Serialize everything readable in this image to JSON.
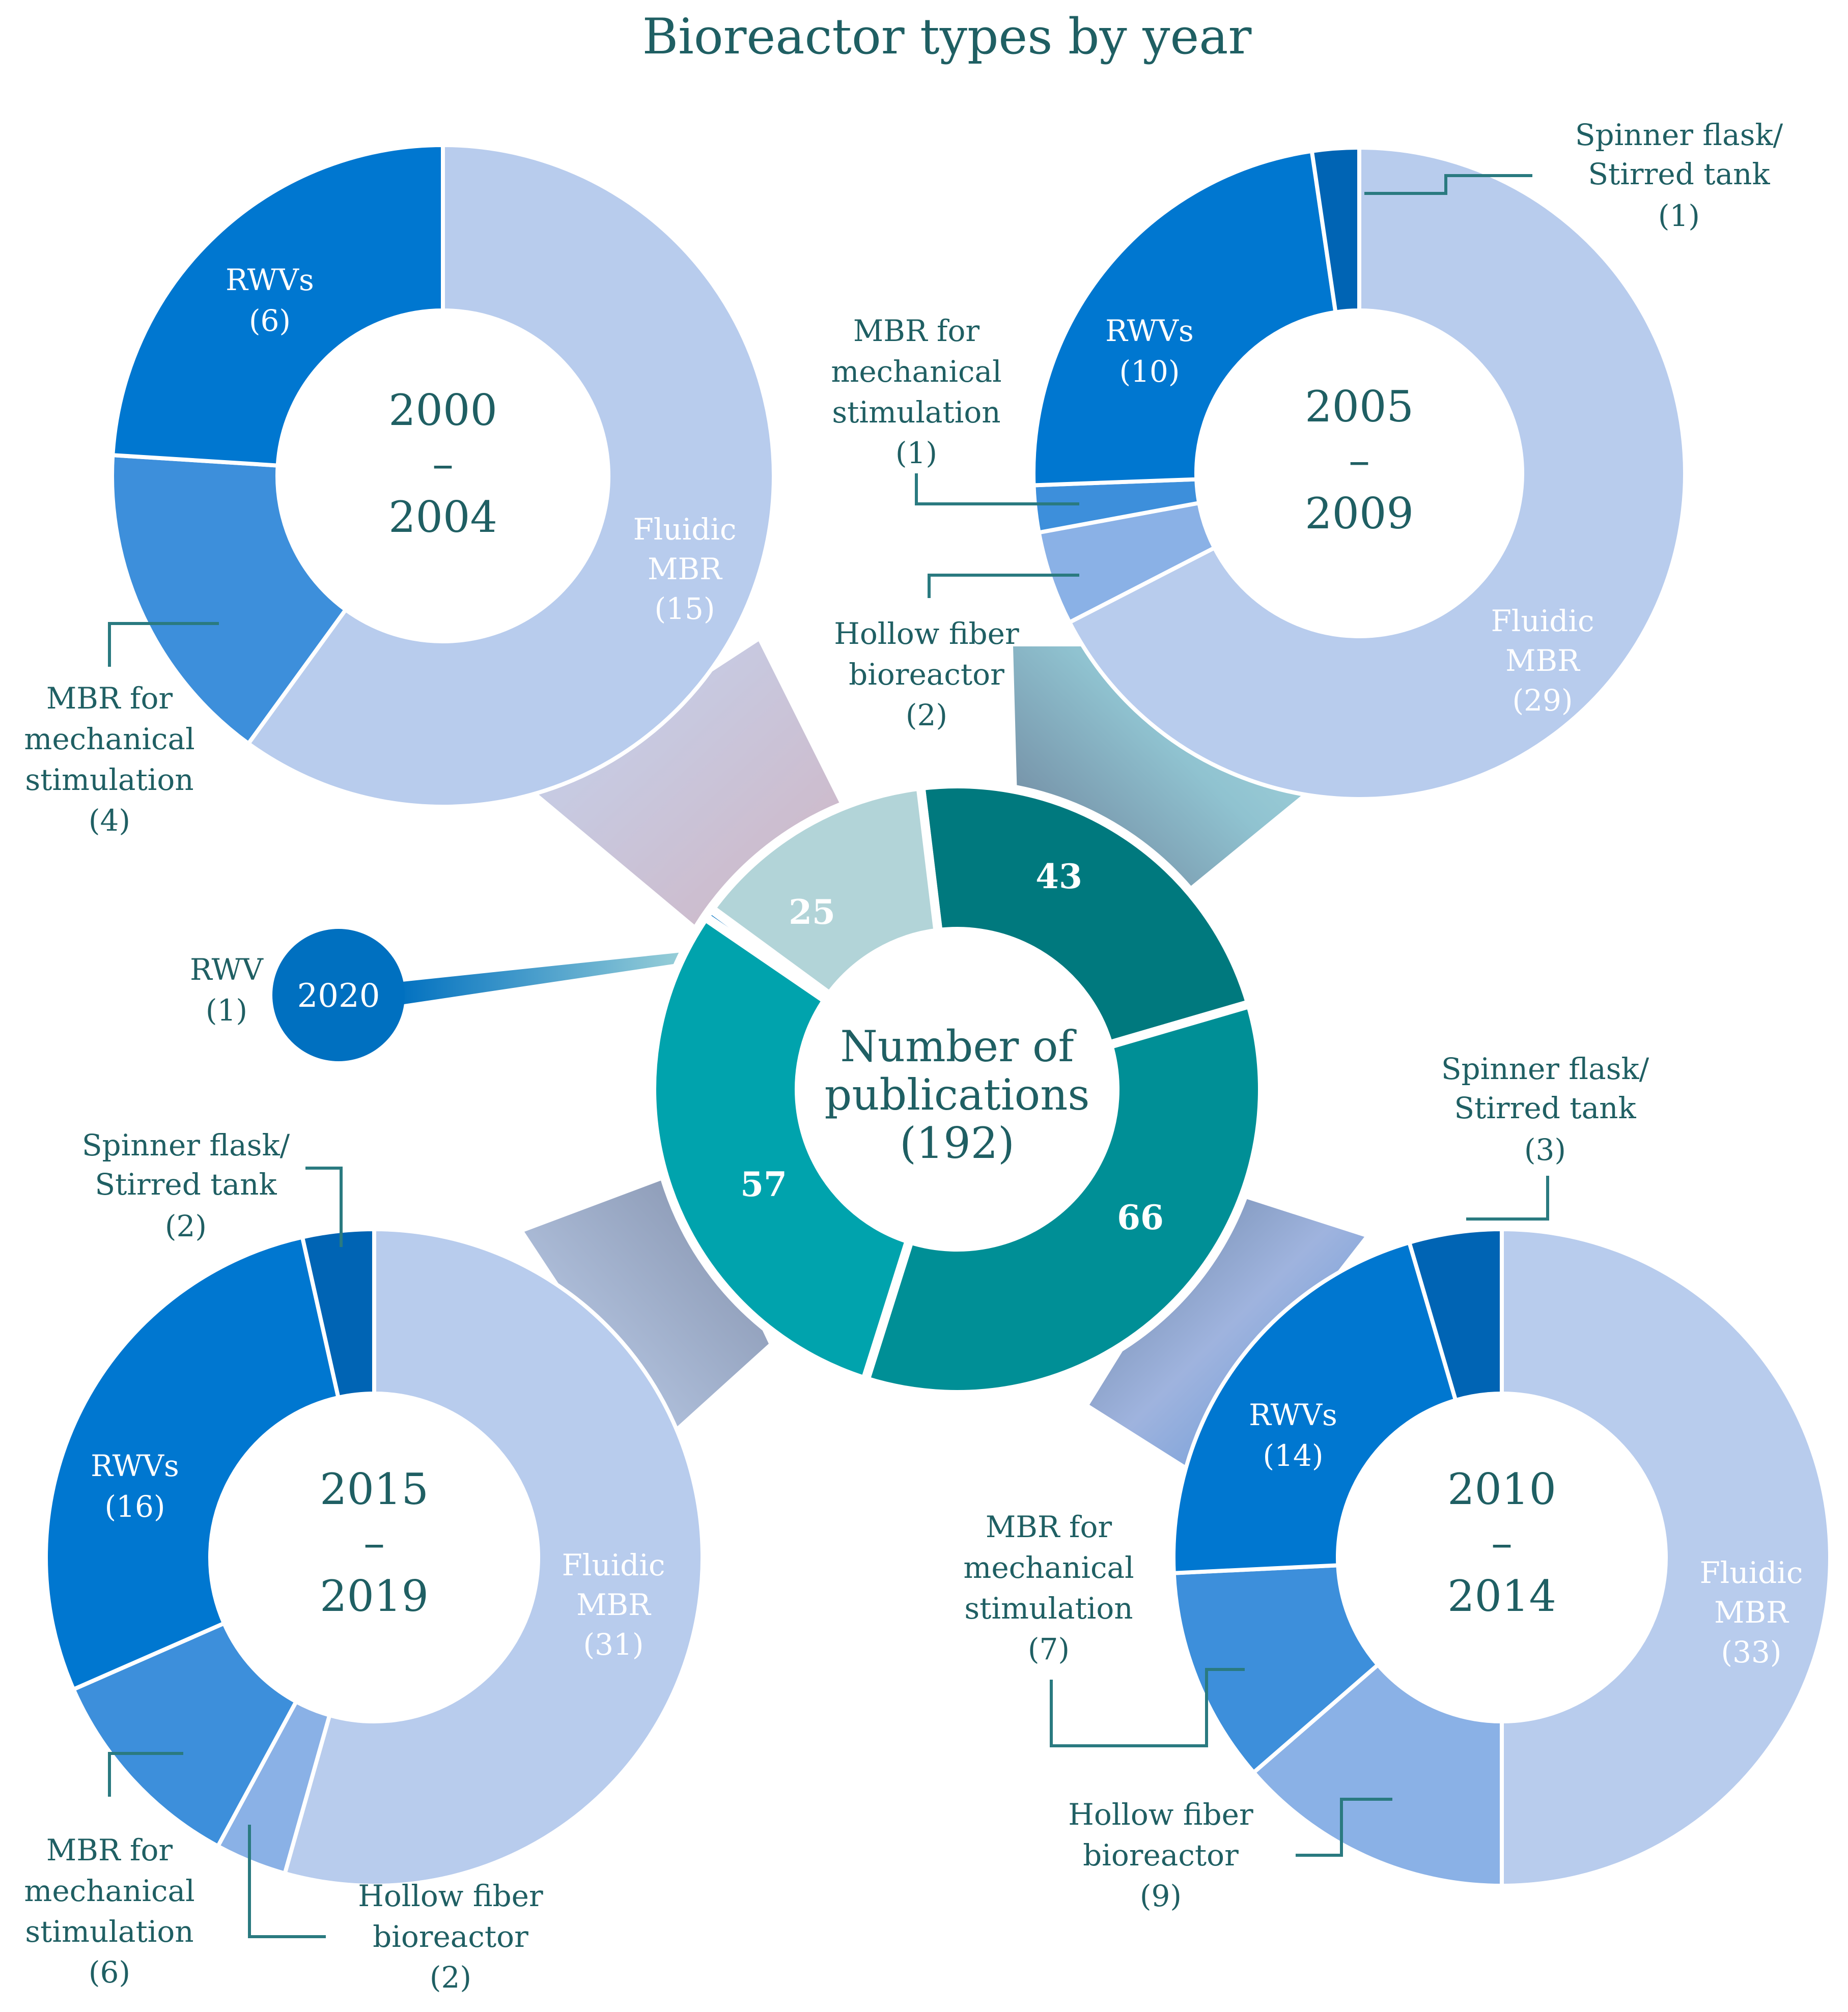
{
  "chart_data": {
    "type": "pie",
    "title": "Bioreactor types by year",
    "center": {
      "lines": [
        "Number of",
        "publications",
        "(192)"
      ],
      "values": [
        {
          "label": "43",
          "value": 43
        },
        {
          "label": "66",
          "value": 66
        },
        {
          "label": "57",
          "value": 57
        },
        {
          "label": "2020",
          "value": 1
        },
        {
          "label": "25",
          "value": 25
        }
      ],
      "colors": [
        "#00797e",
        "#008f96",
        "#00a3ad",
        "#0070c0",
        "#b2d4d8"
      ]
    },
    "donuts": [
      {
        "id": "d2000",
        "period": [
          "2000",
          "–",
          "2004"
        ],
        "segments": [
          {
            "name": "Fluidic MBR",
            "value": 15,
            "color": "#b8cced",
            "label_lines": [
              "Fluidic",
              "MBR",
              "(15)"
            ]
          },
          {
            "name": "MBR for mechanical stimulation",
            "value": 4,
            "color": "#3d8fdb",
            "label_lines": [
              "MBR for",
              "mechanical",
              "stimulation",
              "(4)"
            ]
          },
          {
            "name": "RWVs",
            "value": 6,
            "color": "#0077d0",
            "label_lines": [
              "RWVs",
              "(6)"
            ]
          }
        ]
      },
      {
        "id": "d2005",
        "period": [
          "2005",
          "–",
          "2009"
        ],
        "segments": [
          {
            "name": "Fluidic MBR",
            "value": 29,
            "color": "#b8cced",
            "label_lines": [
              "Fluidic",
              "MBR",
              "(29)"
            ]
          },
          {
            "name": "Hollow fiber bioreactor",
            "value": 2,
            "color": "#8ab1e6",
            "label_lines": [
              "Hollow fiber",
              "bioreactor",
              "(2)"
            ]
          },
          {
            "name": "MBR for mechanical stimulation",
            "value": 1,
            "color": "#3d8fdb",
            "label_lines": [
              "MBR for",
              "mechanical",
              "stimulation",
              "(1)"
            ]
          },
          {
            "name": "RWVs",
            "value": 10,
            "color": "#0077d0",
            "label_lines": [
              "RWVs",
              "(10)"
            ]
          },
          {
            "name": "Spinner flask/Stirred tank",
            "value": 1,
            "color": "#0064b4",
            "label_lines": [
              "Spinner flask/",
              "Stirred tank",
              "(1)"
            ]
          }
        ]
      },
      {
        "id": "d2010",
        "period": [
          "2010",
          "–",
          "2014"
        ],
        "segments": [
          {
            "name": "Fluidic MBR",
            "value": 33,
            "color": "#b8cced",
            "label_lines": [
              "Fluidic",
              "MBR",
              "(33)"
            ]
          },
          {
            "name": "Hollow fiber bioreactor",
            "value": 9,
            "color": "#8ab1e6",
            "label_lines": [
              "Hollow fiber",
              "bioreactor",
              "(9)"
            ]
          },
          {
            "name": "MBR for mechanical stimulation",
            "value": 7,
            "color": "#3d8fdb",
            "label_lines": [
              "MBR for",
              "mechanical",
              "stimulation",
              "(7)"
            ]
          },
          {
            "name": "RWVs",
            "value": 14,
            "color": "#0077d0",
            "label_lines": [
              "RWVs",
              "(14)"
            ]
          },
          {
            "name": "Spinner flask/Stirred tank",
            "value": 3,
            "color": "#0064b4",
            "label_lines": [
              "Spinner flask/",
              "Stirred tank",
              "(3)"
            ]
          }
        ]
      },
      {
        "id": "d2015",
        "period": [
          "2015",
          "–",
          "2019"
        ],
        "segments": [
          {
            "name": "Fluidic MBR",
            "value": 31,
            "color": "#b8cced",
            "label_lines": [
              "Fluidic",
              "MBR",
              "(31)"
            ]
          },
          {
            "name": "Hollow fiber bioreactor",
            "value": 2,
            "color": "#8ab1e6",
            "label_lines": [
              "Hollow fiber",
              "bioreactor",
              "(2)"
            ]
          },
          {
            "name": "MBR for mechanical stimulation",
            "value": 6,
            "color": "#3d8fdb",
            "label_lines": [
              "MBR for",
              "mechanical",
              "stimulation",
              "(6)"
            ]
          },
          {
            "name": "RWVs",
            "value": 16,
            "color": "#0077d0",
            "label_lines": [
              "RWVs",
              "(16)"
            ]
          },
          {
            "name": "Spinner flask/Stirred tank",
            "value": 2,
            "color": "#0064b4",
            "label_lines": [
              "Spinner flask/",
              "Stirred tank",
              "(2)"
            ]
          }
        ]
      }
    ],
    "year_2020": {
      "label": "2020",
      "label_lines": [
        "RWV",
        "(1)"
      ],
      "color": "#0070c0"
    }
  }
}
